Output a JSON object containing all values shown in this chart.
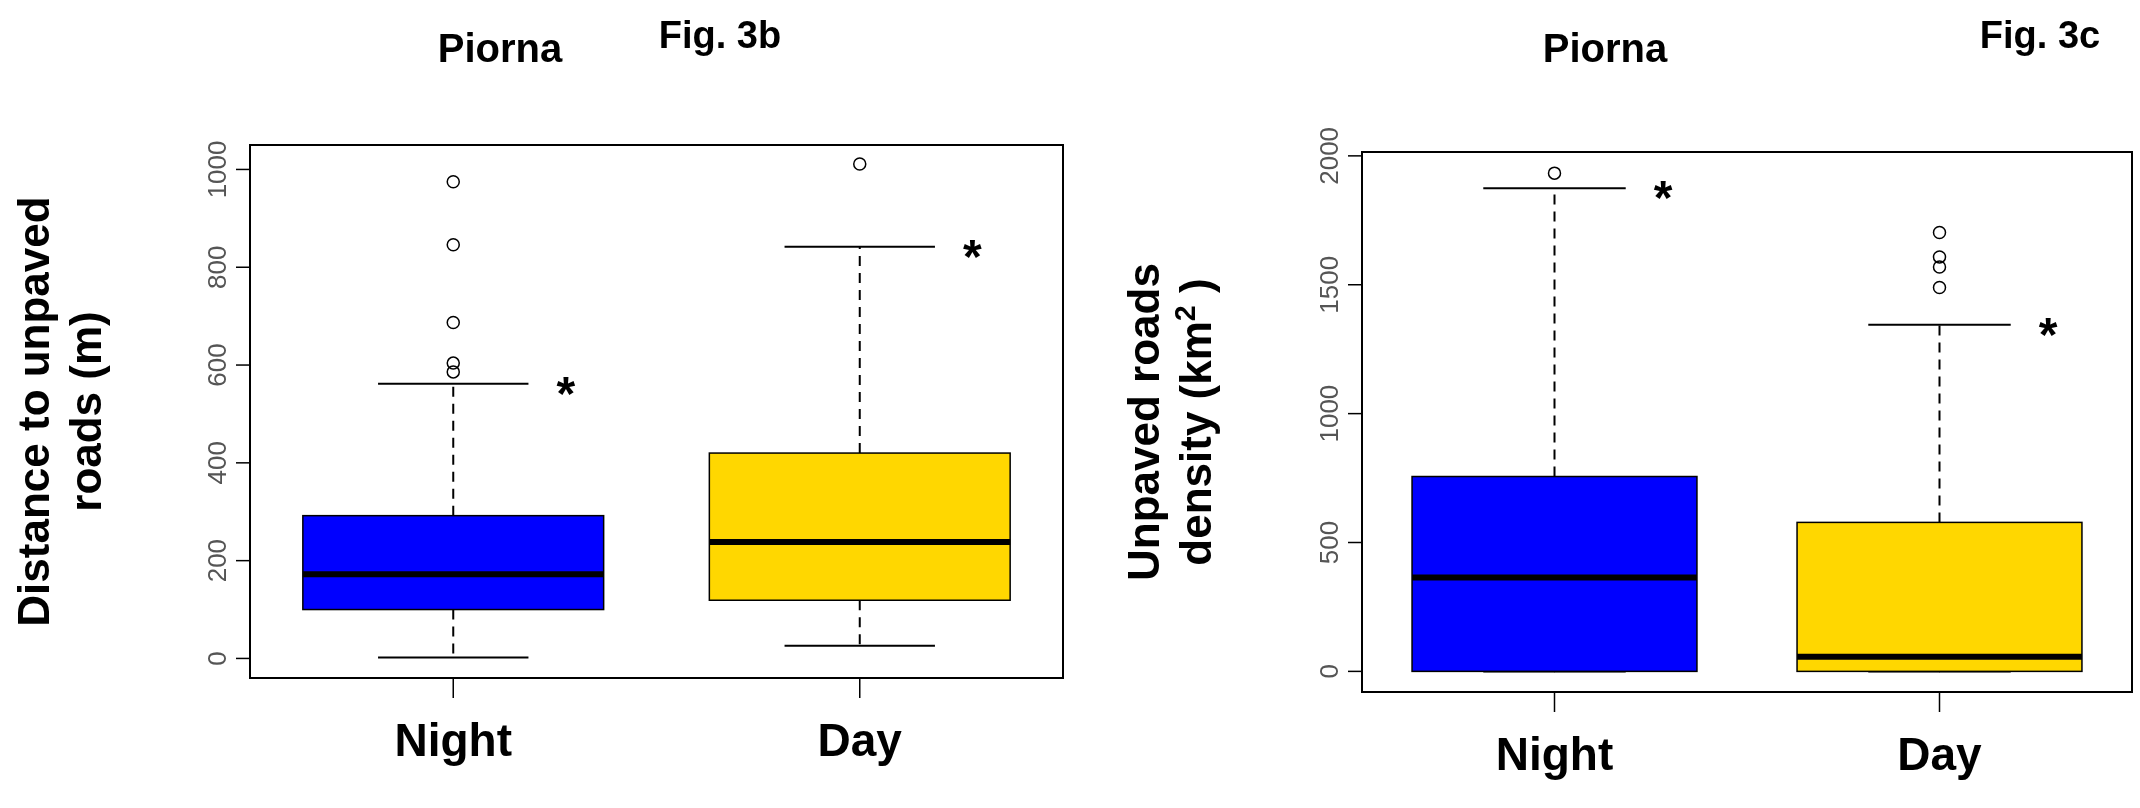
{
  "chart_data": [
    {
      "type": "box",
      "title": "Piorna",
      "ylabel": "Distance to unpaved\nroads (m)",
      "categories": [
        "Night",
        "Day"
      ],
      "colors": [
        "#0000ff",
        "#ffd700"
      ],
      "boxes": [
        {
          "low": 2,
          "q1": 100,
          "median": 172,
          "q3": 292,
          "high": 562,
          "outliers": [
            586,
            604,
            687,
            846,
            975
          ]
        },
        {
          "low": 26,
          "q1": 119,
          "median": 238,
          "q3": 420,
          "high": 842,
          "outliers": [
            1011
          ]
        }
      ],
      "ylim": [
        -40,
        1050
      ],
      "yticks": [
        0,
        200,
        400,
        600,
        800,
        1000
      ],
      "grid": false,
      "tick_labels": "y",
      "annotations": [
        "Fig. 3b",
        {
          "text": "*",
          "x": "Night",
          "y": 562
        },
        {
          "text": "*",
          "x": "Day",
          "y": 842
        }
      ]
    },
    {
      "type": "box",
      "title": "Piorna",
      "ylabel": "Unpaved  roads\ndensity (km$^{2}$ )",
      "categories": [
        "Night",
        "Day"
      ],
      "colors": [
        "#0000ff",
        "#ffd700"
      ],
      "boxes": [
        {
          "low": 0,
          "q1": 0,
          "median": 364,
          "q3": 756,
          "high": 1874,
          "outliers": [
            1933
          ]
        },
        {
          "low": 0,
          "q1": 0,
          "median": 57,
          "q3": 578,
          "high": 1345,
          "outliers": [
            1489,
            1569,
            1608,
            1703
          ]
        }
      ],
      "ylim": [
        -80,
        2015
      ],
      "yticks": [
        0,
        500,
        1000,
        1500,
        2000
      ],
      "grid": false,
      "tick_labels": "y",
      "annotations": [
        "Fig. 3c",
        {
          "text": "*",
          "x": "Night",
          "y": 1874
        },
        {
          "text": "*",
          "x": "Day",
          "y": 1345
        }
      ]
    }
  ]
}
